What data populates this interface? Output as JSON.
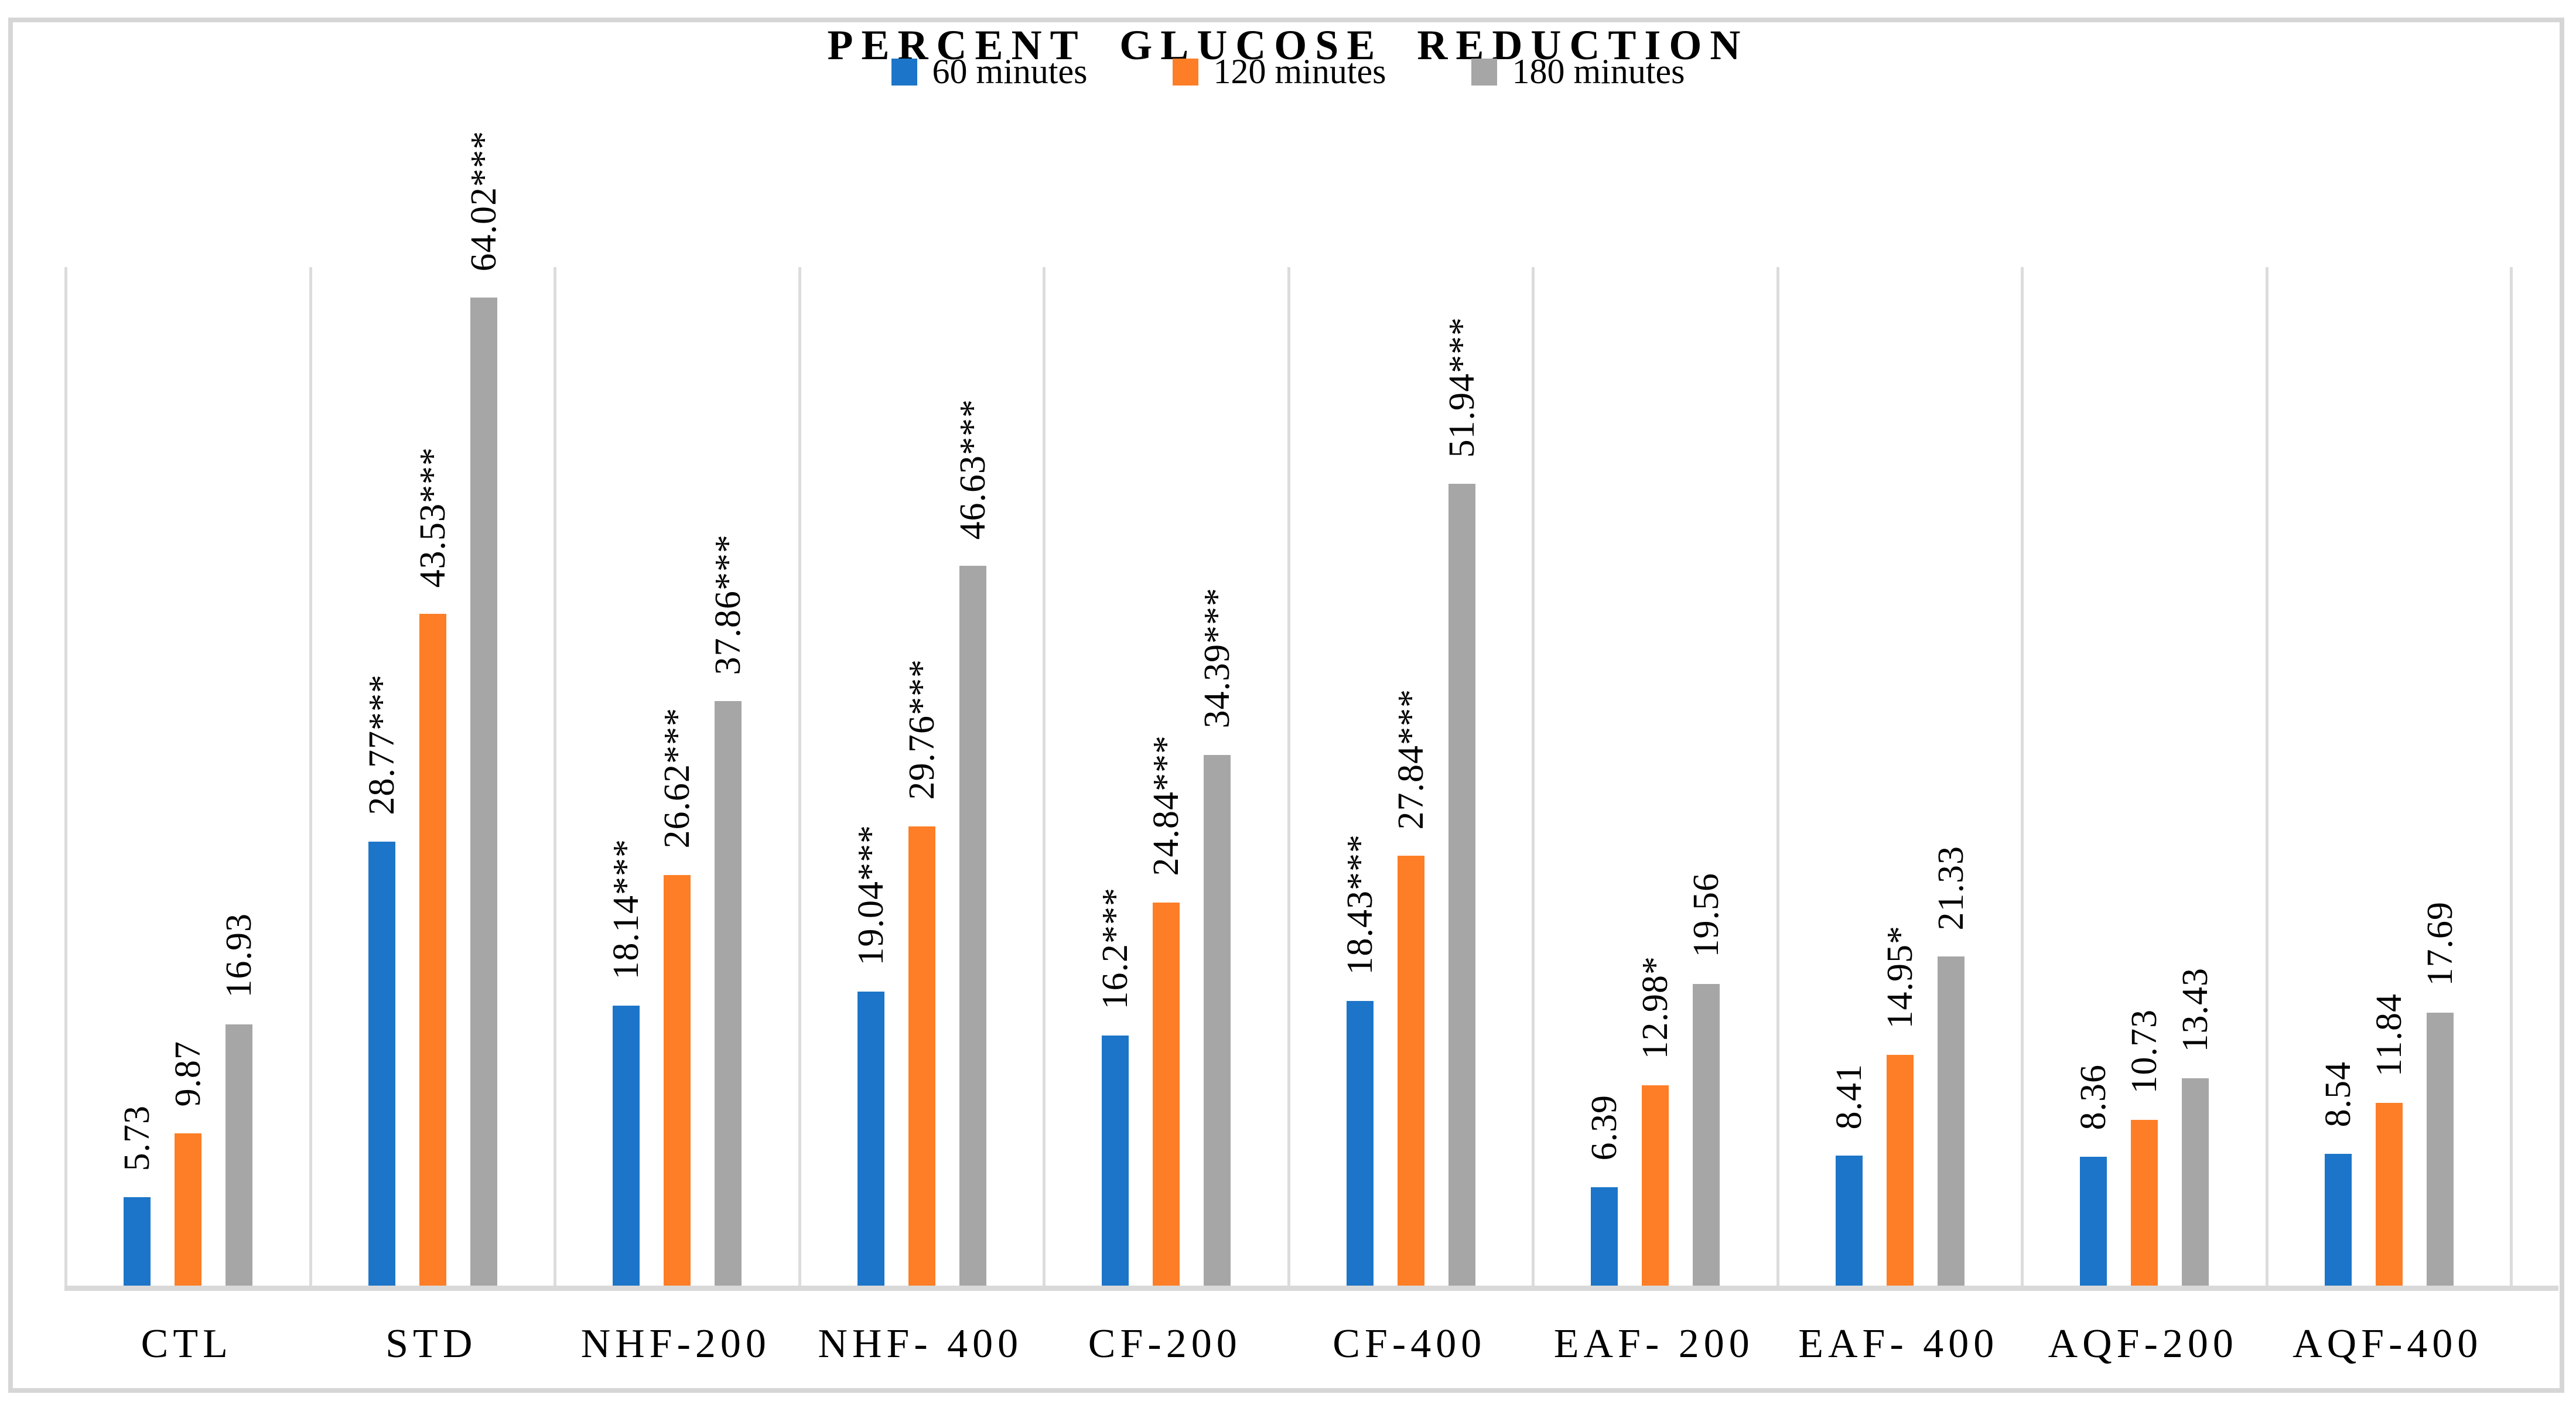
{
  "chart_data": {
    "type": "bar",
    "title": "PERCENT GLUCOSE REDUCTION",
    "categories": [
      "CTL",
      "STD",
      "NHF-200",
      "NHF- 400",
      "CF-200",
      "CF-400",
      "EAF- 200",
      "EAF- 400",
      "AQF-200",
      "AQF-400"
    ],
    "series": [
      {
        "name": "60 minutes",
        "color": "#1C75C8",
        "values": [
          5.73,
          28.77,
          18.14,
          19.04,
          16.2,
          18.43,
          6.39,
          8.41,
          8.36,
          8.54
        ],
        "labels": [
          "5.73",
          "28.77***",
          "18.14***",
          "19.04***",
          "16.2***",
          "18.43***",
          "6.39",
          "8.41",
          "8.36",
          "8.54"
        ]
      },
      {
        "name": "120 minutes",
        "color": "#FD7E27",
        "values": [
          9.87,
          43.53,
          26.62,
          29.76,
          24.84,
          27.84,
          12.98,
          14.95,
          10.73,
          11.84
        ],
        "labels": [
          "9.87",
          "43.53***",
          "26.62***",
          "29.76***",
          "24.84***",
          "27.84***",
          "12.98*",
          "14.95*",
          "10.73",
          "11.84"
        ]
      },
      {
        "name": "180 minutes",
        "color": "#A6A6A6",
        "values": [
          16.93,
          64.02,
          37.86,
          46.63,
          34.39,
          51.94,
          19.56,
          21.33,
          13.43,
          17.69
        ],
        "labels": [
          "16.93",
          "64.02***",
          "37.86***",
          "46.63***",
          "34.39***",
          "51.94***",
          "19.56",
          "21.33",
          "13.43",
          "17.69"
        ]
      }
    ],
    "ylim": [
      0,
      66
    ],
    "xlabel": "",
    "ylabel": "",
    "grid": "vertical-category-separators-only",
    "legend_position": "top",
    "value_labels": "rotated-90-counterclockwise-above-bars"
  },
  "colors": {
    "bar_blue": "#1C75C8",
    "bar_orange": "#FD7E27",
    "bar_gray": "#A6A6A6",
    "frame_border": "#D6D6D6",
    "axis_line": "#D9D9D9",
    "separator_line": "#DCDCDC",
    "text": "#000000"
  }
}
